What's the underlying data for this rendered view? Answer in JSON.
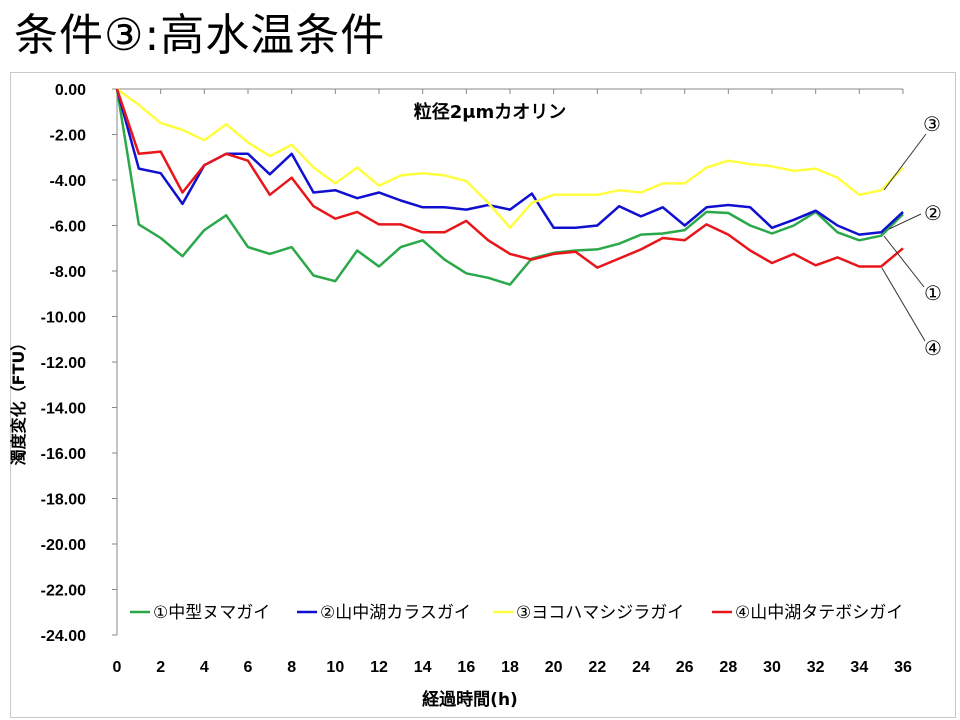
{
  "slide": {
    "title": "条件③:高水温条件"
  },
  "chart_data": {
    "type": "line",
    "title": "粒径2μmカオリン",
    "xlabel": "経過時間(h)",
    "ylabel": "濁度変化（FTU）",
    "xlim": [
      0,
      36
    ],
    "ylim": [
      -24,
      0
    ],
    "grid": false,
    "legend": "bottom",
    "x_ticks": [
      "0",
      "2",
      "4",
      "6",
      "8",
      "10",
      "12",
      "14",
      "16",
      "18",
      "20",
      "22",
      "24",
      "26",
      "28",
      "30",
      "32",
      "34",
      "36"
    ],
    "y_ticks": [
      "0.00",
      "-2.00",
      "-4.00",
      "-6.00",
      "-8.00",
      "-10.00",
      "-12.00",
      "-14.00",
      "-16.00",
      "-18.00",
      "-20.00",
      "-22.00",
      "-24.00"
    ],
    "x": [
      0,
      1,
      2,
      3,
      4,
      5,
      6,
      7,
      8,
      9,
      10,
      11,
      12,
      13,
      14,
      15,
      16,
      17,
      18,
      19,
      20,
      21,
      22,
      23,
      24,
      25,
      26,
      27,
      28,
      29,
      30,
      31,
      32,
      33,
      34,
      35,
      36
    ],
    "series": [
      {
        "name": "①中型ヌマガイ",
        "color": "#2BA84A",
        "values": [
          0,
          -5.95,
          -6.55,
          -7.35,
          -6.2,
          -5.55,
          -6.95,
          -7.25,
          -6.95,
          -8.2,
          -8.45,
          -7.1,
          -7.8,
          -6.95,
          -6.65,
          -7.5,
          -8.1,
          -8.3,
          -8.6,
          -7.45,
          -7.2,
          -7.1,
          -7.05,
          -6.8,
          -6.4,
          -6.35,
          -6.2,
          -5.4,
          -5.45,
          -6.0,
          -6.35,
          -6.0,
          -5.4,
          -6.3,
          -6.65,
          -6.45,
          -5.5
        ]
      },
      {
        "name": "②山中湖カラスガイ",
        "color": "#1010D0",
        "values": [
          0,
          -3.5,
          -3.7,
          -5.05,
          -3.35,
          -2.85,
          -2.85,
          -3.75,
          -2.85,
          -4.55,
          -4.45,
          -4.8,
          -4.55,
          -4.9,
          -5.2,
          -5.2,
          -5.3,
          -5.1,
          -5.3,
          -4.6,
          -6.1,
          -6.1,
          -6.0,
          -5.15,
          -5.6,
          -5.2,
          -6.0,
          -5.2,
          -5.1,
          -5.2,
          -6.1,
          -5.75,
          -5.35,
          -6.0,
          -6.4,
          -6.3,
          -5.4
        ]
      },
      {
        "name": "③ヨコハマシジラガイ",
        "color": "#FFFF40",
        "values": [
          0,
          -0.7,
          -1.5,
          -1.8,
          -2.25,
          -1.55,
          -2.35,
          -2.95,
          -2.45,
          -3.45,
          -4.15,
          -3.45,
          -4.25,
          -3.8,
          -3.7,
          -3.8,
          -4.05,
          -5.0,
          -6.1,
          -5.0,
          -4.65,
          -4.65,
          -4.65,
          -4.45,
          -4.55,
          -4.15,
          -4.15,
          -3.45,
          -3.15,
          -3.3,
          -3.4,
          -3.6,
          -3.5,
          -3.9,
          -4.65,
          -4.45,
          -3.45
        ]
      },
      {
        "name": "④山中湖タテボシガイ",
        "color": "#E8161B",
        "values": [
          0,
          -2.85,
          -2.75,
          -4.55,
          -3.35,
          -2.85,
          -3.15,
          -4.65,
          -3.9,
          -5.15,
          -5.7,
          -5.4,
          -5.95,
          -5.95,
          -6.3,
          -6.3,
          -5.8,
          -6.65,
          -7.25,
          -7.5,
          -7.25,
          -7.15,
          -7.85,
          -7.45,
          -7.05,
          -6.55,
          -6.65,
          -5.95,
          -6.4,
          -7.1,
          -7.65,
          -7.25,
          -7.75,
          -7.4,
          -7.8,
          -7.8,
          -7.0
        ]
      }
    ],
    "annotations": [
      "③",
      "②",
      "①",
      "④"
    ]
  }
}
